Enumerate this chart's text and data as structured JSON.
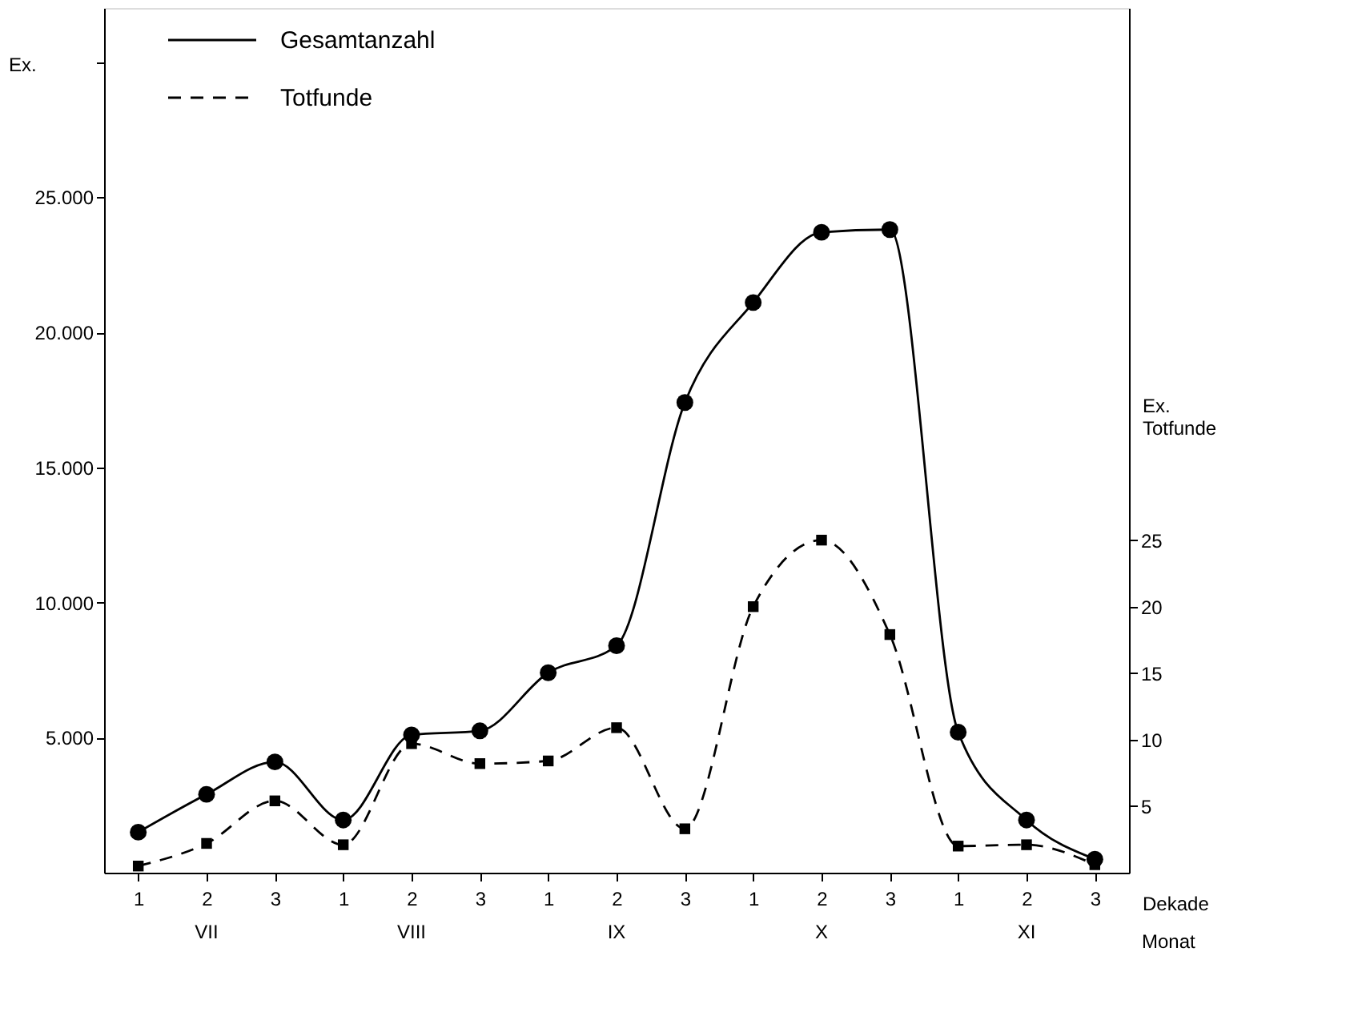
{
  "chart_data": {
    "type": "line",
    "categories": [
      "1",
      "2",
      "3",
      "1",
      "2",
      "3",
      "1",
      "2",
      "3",
      "1",
      "2",
      "3",
      "1",
      "2",
      "3"
    ],
    "series": [
      {
        "name": "Gesamtanzahl",
        "color": "#000000",
        "line_style": "solid",
        "marker": "circle",
        "values": [
          1500,
          2900,
          4100,
          1950,
          5100,
          5250,
          7400,
          8400,
          17400,
          21100,
          23700,
          23800,
          5200,
          1950,
          500
        ]
      },
      {
        "name": "Totfunde",
        "color": "#000000",
        "line_style": "dashed",
        "marker": "square",
        "axis": "y2",
        "values": [
          0.5,
          2.2,
          5.4,
          2.1,
          9.7,
          8.2,
          8.4,
          10.9,
          3.3,
          20,
          25,
          17.9,
          2,
          2.1,
          0.6
        ]
      }
    ],
    "ylabel": "Ex.",
    "y2label": "Ex. Totfunde",
    "xlabel": "Dekade",
    "ylim": [
      0,
      32000
    ],
    "yticks": [
      {
        "value": 5000,
        "label": "5.000"
      },
      {
        "value": 10000,
        "label": "10.000"
      },
      {
        "value": 15000,
        "label": "15.000"
      },
      {
        "value": 20000,
        "label": "20.000"
      },
      {
        "value": 25000,
        "label": "25.000"
      },
      {
        "value": 30000,
        "label": null
      }
    ],
    "y2lim": [
      0,
      65
    ],
    "y2ticks": [
      5,
      10,
      15,
      20,
      25
    ],
    "annotations": [
      "VII",
      "VIII",
      "IX",
      "X",
      "XI",
      "Monat"
    ],
    "legend": "top left",
    "grid": false
  }
}
